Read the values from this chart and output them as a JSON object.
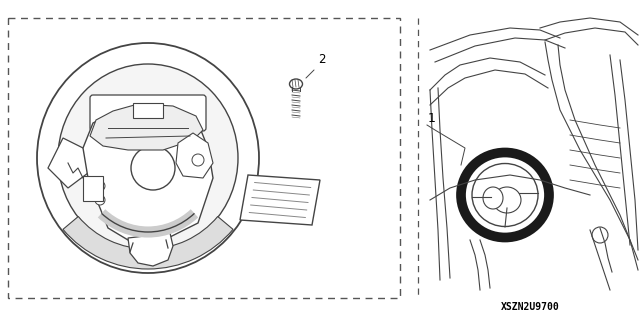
{
  "bg_color": "#ffffff",
  "line_color": "#444444",
  "label_color": "#000000",
  "part_number_label": "2",
  "install_label": "1",
  "diagram_code": "XSZN2U9700"
}
